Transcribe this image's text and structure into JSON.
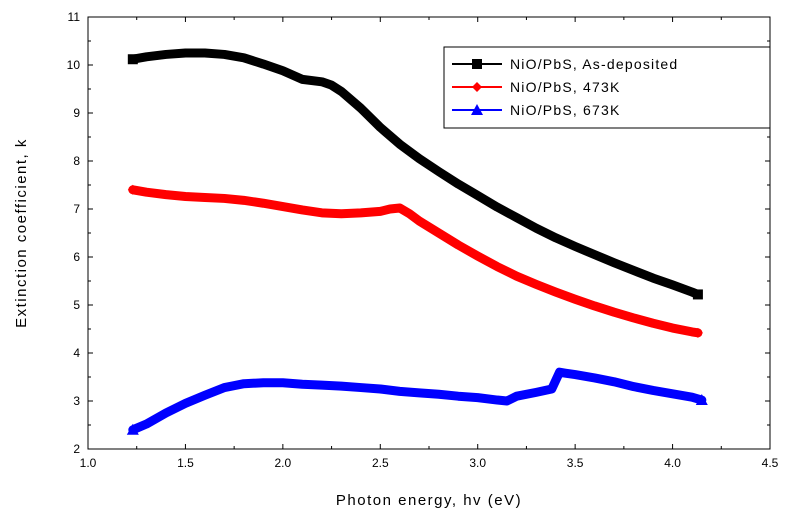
{
  "chart_data": {
    "type": "line",
    "title": "",
    "xlabel": "Photon energy, hv (eV)",
    "ylabel": "Extinction coefficient, k",
    "xlim": [
      1.0,
      4.5
    ],
    "ylim": [
      2,
      11
    ],
    "xticks": [
      "1.0",
      "1.5",
      "2.0",
      "2.5",
      "3.0",
      "3.5",
      "4.0",
      "4.5"
    ],
    "yticks": [
      "2",
      "3",
      "4",
      "5",
      "6",
      "7",
      "8",
      "9",
      "10",
      "11"
    ],
    "grid": false,
    "legend_position": "top-right",
    "series": [
      {
        "name": "NiO/PbS, As-deposited",
        "color": "#000000",
        "marker": "square",
        "x": [
          1.23,
          1.3,
          1.4,
          1.5,
          1.6,
          1.7,
          1.8,
          1.9,
          2.0,
          2.1,
          2.2,
          2.25,
          2.3,
          2.4,
          2.5,
          2.6,
          2.7,
          2.8,
          2.9,
          3.0,
          3.1,
          3.2,
          3.3,
          3.4,
          3.5,
          3.6,
          3.7,
          3.8,
          3.9,
          4.0,
          4.1,
          4.13
        ],
        "y": [
          10.12,
          10.17,
          10.22,
          10.25,
          10.25,
          10.22,
          10.15,
          10.02,
          9.88,
          9.7,
          9.65,
          9.58,
          9.45,
          9.1,
          8.7,
          8.35,
          8.05,
          7.78,
          7.52,
          7.28,
          7.04,
          6.82,
          6.6,
          6.4,
          6.22,
          6.05,
          5.88,
          5.72,
          5.56,
          5.42,
          5.27,
          5.22
        ]
      },
      {
        "name": "NiO/PbS, 473K",
        "color": "#ff0000",
        "marker": "diamond",
        "x": [
          1.23,
          1.3,
          1.4,
          1.5,
          1.6,
          1.7,
          1.8,
          1.9,
          2.0,
          2.1,
          2.2,
          2.3,
          2.4,
          2.5,
          2.55,
          2.6,
          2.65,
          2.7,
          2.8,
          2.9,
          3.0,
          3.1,
          3.2,
          3.3,
          3.4,
          3.5,
          3.6,
          3.7,
          3.8,
          3.9,
          4.0,
          4.1,
          4.13
        ],
        "y": [
          7.4,
          7.35,
          7.3,
          7.26,
          7.24,
          7.22,
          7.18,
          7.12,
          7.05,
          6.98,
          6.92,
          6.9,
          6.92,
          6.95,
          7.0,
          7.02,
          6.9,
          6.75,
          6.5,
          6.25,
          6.02,
          5.8,
          5.6,
          5.43,
          5.27,
          5.12,
          4.98,
          4.85,
          4.73,
          4.62,
          4.52,
          4.44,
          4.42
        ]
      },
      {
        "name": "NiO/PbS, 673K",
        "color": "#0000ff",
        "marker": "triangle",
        "x": [
          1.23,
          1.3,
          1.4,
          1.5,
          1.6,
          1.7,
          1.8,
          1.9,
          2.0,
          2.1,
          2.2,
          2.3,
          2.4,
          2.5,
          2.6,
          2.7,
          2.8,
          2.9,
          3.0,
          3.1,
          3.15,
          3.2,
          3.3,
          3.38,
          3.42,
          3.45,
          3.5,
          3.6,
          3.7,
          3.8,
          3.9,
          4.0,
          4.1,
          4.15
        ],
        "y": [
          2.4,
          2.52,
          2.75,
          2.95,
          3.12,
          3.28,
          3.36,
          3.38,
          3.38,
          3.35,
          3.33,
          3.31,
          3.28,
          3.25,
          3.2,
          3.17,
          3.14,
          3.1,
          3.07,
          3.02,
          3.0,
          3.1,
          3.18,
          3.25,
          3.6,
          3.58,
          3.55,
          3.48,
          3.4,
          3.3,
          3.22,
          3.15,
          3.08,
          3.02
        ]
      }
    ]
  }
}
